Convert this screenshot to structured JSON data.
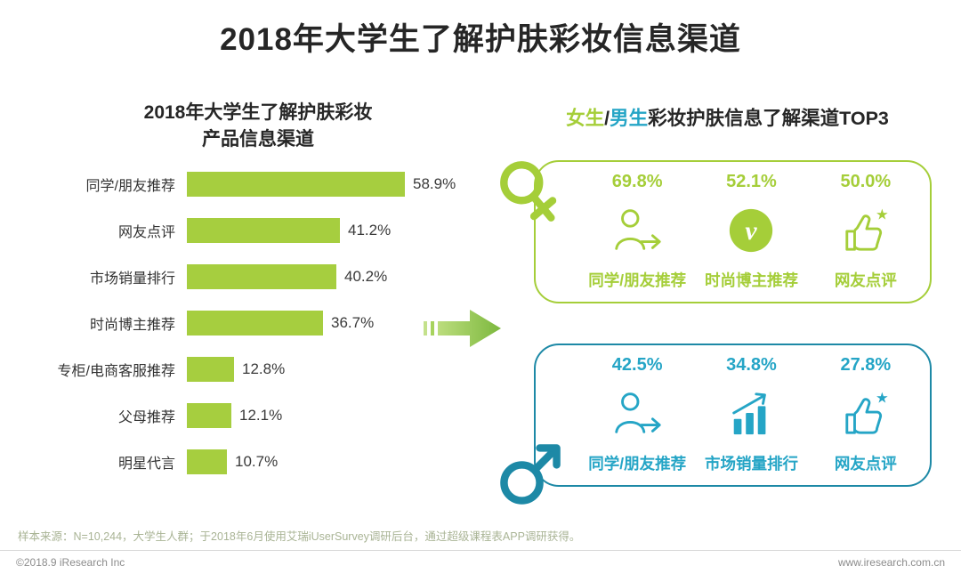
{
  "page": {
    "title": "2018年大学生了解护肤彩妆信息渠道",
    "footnote": "样本来源：N=10,244，大学生人群；于2018年6月使用艾瑞iUserSurvey调研后台，通过超级课程表APP调研获得。",
    "footer_left": "©2018.9 iResearch Inc",
    "footer_right": "www.iresearch.com.cn"
  },
  "colors": {
    "green": "#a5ce39",
    "teal_text": "#25a5c6",
    "teal_border": "#1d89a6",
    "bar_green": "#a6ce3f",
    "title_text": "#262626"
  },
  "chart_data": [
    {
      "type": "bar",
      "orientation": "horizontal",
      "title": "2018年大学生了解护肤彩妆产品信息渠道",
      "title_line1": "2018年大学生了解护肤彩妆",
      "title_line2": "产品信息渠道",
      "categories": [
        "同学/朋友推荐",
        "网友点评",
        "市场销量排行",
        "时尚博主推荐",
        "专柜/电商客服推荐",
        "父母推荐",
        "明星代言"
      ],
      "values": [
        58.9,
        41.2,
        40.2,
        36.7,
        12.8,
        12.1,
        10.7
      ],
      "value_labels": [
        "58.9%",
        "41.2%",
        "40.2%",
        "36.7%",
        "12.8%",
        "12.1%",
        "10.7%"
      ],
      "unit": "%",
      "xlim": [
        0,
        60
      ],
      "grid": false,
      "bar_color": "#a6ce3f"
    },
    {
      "type": "table",
      "title": "女生/男生彩妆护肤信息了解渠道TOP3",
      "title_segments": {
        "female": "女生",
        "slash": "/",
        "male": "男生",
        "rest": "彩妆护肤信息了解渠道TOP3"
      },
      "female_top3": {
        "gender": "女生",
        "items": [
          {
            "rank": 1,
            "label": "同学/朋友推荐",
            "value": 69.8,
            "value_label": "69.8%",
            "icon": "person-arrow-icon"
          },
          {
            "rank": 2,
            "label": "时尚博主推荐",
            "value": 52.1,
            "value_label": "52.1%",
            "icon": "blogger-v-icon"
          },
          {
            "rank": 3,
            "label": "网友点评",
            "value": 50.0,
            "value_label": "50.0%",
            "icon": "thumbs-up-star-icon"
          }
        ]
      },
      "male_top3": {
        "gender": "男生",
        "items": [
          {
            "rank": 1,
            "label": "同学/朋友推荐",
            "value": 42.5,
            "value_label": "42.5%",
            "icon": "person-arrow-icon"
          },
          {
            "rank": 2,
            "label": "市场销量排行",
            "value": 34.8,
            "value_label": "34.8%",
            "icon": "bar-chart-arrow-icon"
          },
          {
            "rank": 3,
            "label": "网友点评",
            "value": 27.8,
            "value_label": "27.8%",
            "icon": "thumbs-up-star-icon"
          }
        ]
      }
    }
  ]
}
